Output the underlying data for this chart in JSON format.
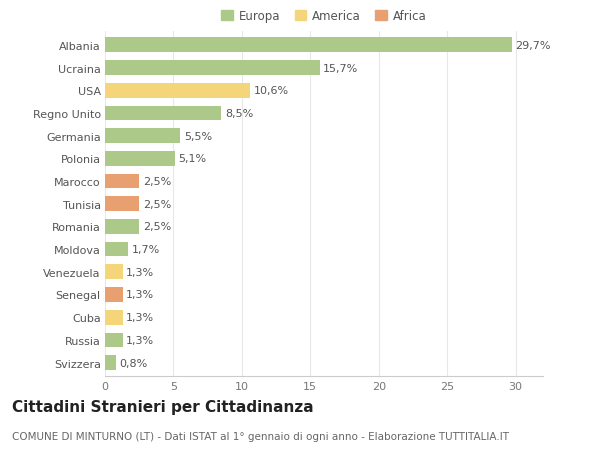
{
  "countries": [
    "Albania",
    "Ucraina",
    "USA",
    "Regno Unito",
    "Germania",
    "Polonia",
    "Marocco",
    "Tunisia",
    "Romania",
    "Moldova",
    "Venezuela",
    "Senegal",
    "Cuba",
    "Russia",
    "Svizzera"
  ],
  "values": [
    29.7,
    15.7,
    10.6,
    8.5,
    5.5,
    5.1,
    2.5,
    2.5,
    2.5,
    1.7,
    1.3,
    1.3,
    1.3,
    1.3,
    0.8
  ],
  "labels": [
    "29,7%",
    "15,7%",
    "10,6%",
    "8,5%",
    "5,5%",
    "5,1%",
    "2,5%",
    "2,5%",
    "2,5%",
    "1,7%",
    "1,3%",
    "1,3%",
    "1,3%",
    "1,3%",
    "0,8%"
  ],
  "categories": [
    "Europa",
    "America",
    "Africa"
  ],
  "continent": [
    "Europa",
    "Europa",
    "America",
    "Europa",
    "Europa",
    "Europa",
    "Africa",
    "Africa",
    "Europa",
    "Europa",
    "America",
    "Africa",
    "America",
    "Europa",
    "Europa"
  ],
  "colors": {
    "Europa": "#adc98a",
    "America": "#f5d57a",
    "Africa": "#e8a070"
  },
  "xlim": [
    0,
    32
  ],
  "xticks": [
    0,
    5,
    10,
    15,
    20,
    25,
    30
  ],
  "title": "Cittadini Stranieri per Cittadinanza",
  "subtitle": "COMUNE DI MINTURNO (LT) - Dati ISTAT al 1° gennaio di ogni anno - Elaborazione TUTTITALIA.IT",
  "background_color": "#ffffff",
  "grid_color": "#e8e8e8",
  "bar_height": 0.65,
  "label_fontsize": 8,
  "tick_fontsize": 8,
  "title_fontsize": 11,
  "subtitle_fontsize": 7.5,
  "legend_fontsize": 8.5
}
